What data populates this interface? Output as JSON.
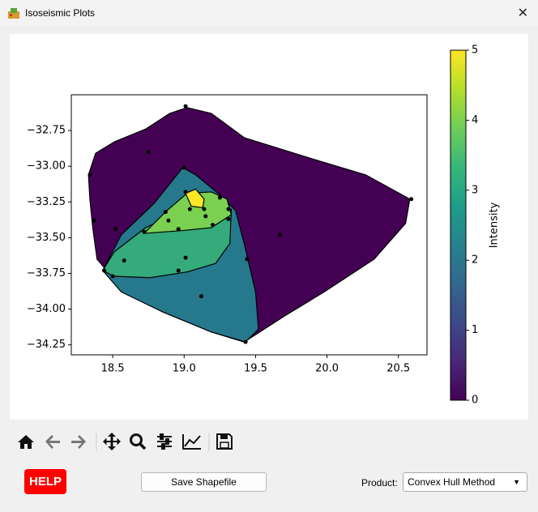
{
  "window": {
    "title": "Isoseismic Plots",
    "close": "✕"
  },
  "controls": {
    "help": "HELP",
    "save": "Save Shapefile",
    "product_label": "Product:",
    "product_value": "Convex Hull Method"
  },
  "chart_data": {
    "type": "filled-contour",
    "xlim": [
      18.21,
      20.7
    ],
    "ylim": [
      -34.32,
      -32.5
    ],
    "xticks": [
      18.5,
      {
        "value": 19,
        "label": "19.0"
      },
      19.5,
      {
        "value": 20,
        "label": "20.0"
      },
      20.5
    ],
    "yticks": [
      {
        "value": -32.75,
        "label": "−32.75"
      },
      {
        "value": -33,
        "label": "−33.00"
      },
      {
        "value": -33.25,
        "label": "−33.25"
      },
      {
        "value": -33.5,
        "label": "−33.50"
      },
      {
        "value": -33.75,
        "label": "−33.75"
      },
      {
        "value": -34,
        "label": "−34.00"
      },
      {
        "value": -34.25,
        "label": "−34.25"
      }
    ],
    "regions": [
      {
        "color": "#440154",
        "x": [
          18.33,
          18.38,
          18.51,
          18.73,
          18.9,
          19.02,
          19.19,
          19.42,
          19.87,
          20.27,
          20.58,
          20.55,
          20.33,
          19.98,
          19.7,
          19.53,
          19.42,
          19.19,
          18.85,
          18.56,
          18.39,
          18.36,
          18.34
        ],
        "y": [
          -33.06,
          -32.91,
          -32.83,
          -32.74,
          -32.63,
          -32.59,
          -32.63,
          -32.8,
          -32.94,
          -33.06,
          -33.23,
          -33.4,
          -33.65,
          -33.88,
          -34.05,
          -34.16,
          -34.23,
          -34.16,
          -34.02,
          -33.85,
          -33.65,
          -33.43,
          -33.23
        ]
      },
      {
        "color": "#26788c",
        "x": [
          18.43,
          18.56,
          18.79,
          18.99,
          19.08,
          19.25,
          19.36,
          19.42,
          19.5,
          19.52,
          19.43,
          19.19,
          18.85,
          18.56
        ],
        "y": [
          -33.73,
          -33.48,
          -33.26,
          -33.01,
          -33.06,
          -33.2,
          -33.31,
          -33.54,
          -33.88,
          -34.14,
          -34.23,
          -34.16,
          -34.02,
          -33.88
        ]
      },
      {
        "color": "#35ab7c",
        "x": [
          18.43,
          18.51,
          18.73,
          19.01,
          19.33,
          19.32,
          19.22,
          19.02,
          18.76,
          18.51
        ],
        "y": [
          -33.73,
          -33.6,
          -33.43,
          -33.3,
          -33.3,
          -33.54,
          -33.68,
          -33.74,
          -33.78,
          -33.77
        ]
      },
      {
        "color": "#7ad151",
        "x": [
          18.72,
          18.88,
          19.02,
          19.19,
          19.3,
          19.33,
          19.19,
          18.99
        ],
        "y": [
          -33.47,
          -33.31,
          -33.19,
          -33.18,
          -33.23,
          -33.34,
          -33.43,
          -33.45
        ]
      },
      {
        "color": "#fde725",
        "x": [
          19.01,
          19.08,
          19.14,
          19.13,
          19.05
        ],
        "y": [
          -33.19,
          -33.16,
          -33.23,
          -33.29,
          -33.28
        ]
      }
    ],
    "points": {
      "color": "#000000",
      "x": [
        19.01,
        18.75,
        18.34,
        18.37,
        19.0,
        19.01,
        19.04,
        19.14,
        19.25,
        19.31,
        19.31,
        19.2,
        19.15,
        18.87,
        18.89,
        18.96,
        18.72,
        18.52,
        18.58,
        18.44,
        18.5,
        19.01,
        18.96,
        19.44,
        19.67,
        20.59,
        19.12,
        19.43
      ],
      "y": [
        -32.58,
        -32.9,
        -33.06,
        -33.38,
        -33.01,
        -33.18,
        -33.3,
        -33.3,
        -33.22,
        -33.3,
        -33.37,
        -33.41,
        -33.35,
        -33.32,
        -33.38,
        -33.44,
        -33.46,
        -33.44,
        -33.66,
        -33.73,
        -33.77,
        -33.64,
        -33.73,
        -33.65,
        -33.48,
        -33.23,
        -33.91,
        -34.23
      ]
    },
    "colorbar": {
      "label": "Intensity",
      "lim": [
        0,
        5
      ],
      "ticks": [
        0,
        1,
        2,
        3,
        4,
        5
      ],
      "colors": [
        "#440154",
        "#482878",
        "#3e4989",
        "#31688e",
        "#26828e",
        "#1f9e89",
        "#35b779",
        "#6ece58",
        "#b5de2b",
        "#fde725"
      ]
    }
  }
}
